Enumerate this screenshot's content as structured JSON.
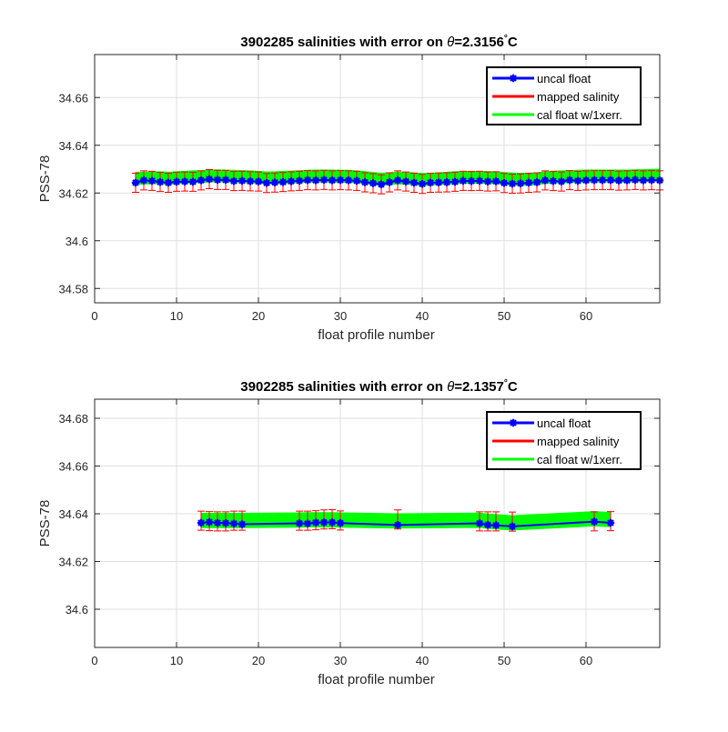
{
  "chart_data": [
    {
      "type": "line",
      "title_main": "3902285 salinities with error on ",
      "title_theta": "θ",
      "title_value": "=2.3156",
      "title_deg": "°",
      "title_unit": "C",
      "xlabel": "float profile number",
      "ylabel": "PSS-78",
      "xlim": [
        0,
        69
      ],
      "ylim": [
        34.574,
        34.678
      ],
      "xticks": [
        0,
        10,
        20,
        30,
        40,
        50,
        60
      ],
      "yticks": [
        34.58,
        34.6,
        34.62,
        34.64,
        34.66
      ],
      "ytick_labels": [
        "34.58",
        "34.6",
        "34.62",
        "34.64",
        "34.66"
      ],
      "grid": true,
      "legend_position": "top-right",
      "legend": [
        {
          "label": "uncal float",
          "color": "#0000ff",
          "marker": "star"
        },
        {
          "label": "mapped salinity",
          "color": "#ff0000"
        },
        {
          "label": "cal float w/1xerr.",
          "color": "#00ff00"
        }
      ],
      "x": [
        5,
        6,
        7,
        8,
        9,
        10,
        11,
        12,
        13,
        14,
        15,
        16,
        17,
        18,
        19,
        20,
        21,
        22,
        23,
        24,
        25,
        26,
        27,
        28,
        29,
        30,
        31,
        32,
        33,
        34,
        35,
        36,
        37,
        38,
        39,
        40,
        41,
        42,
        43,
        44,
        45,
        46,
        47,
        48,
        49,
        50,
        51,
        52,
        53,
        54,
        55,
        56,
        57,
        58,
        59,
        60,
        61,
        62,
        63,
        64,
        65,
        66,
        67,
        68,
        69
      ],
      "series": [
        {
          "name": "uncal float",
          "values": [
            34.6243,
            34.6253,
            34.6251,
            34.6246,
            34.6243,
            34.6247,
            34.6248,
            34.6247,
            34.6253,
            34.6258,
            34.6255,
            34.6255,
            34.625,
            34.6251,
            34.6249,
            34.6248,
            34.6242,
            34.6244,
            34.6246,
            34.6249,
            34.6251,
            34.6254,
            34.6253,
            34.6255,
            34.6253,
            34.6254,
            34.6253,
            34.6251,
            34.6245,
            34.6241,
            34.6236,
            34.6245,
            34.6253,
            34.6248,
            34.6243,
            34.6238,
            34.6243,
            34.6244,
            34.6245,
            34.6247,
            34.6251,
            34.625,
            34.6251,
            34.6248,
            34.6249,
            34.6242,
            34.6239,
            34.624,
            34.6243,
            34.6245,
            34.6253,
            34.625,
            34.6248,
            34.6254,
            34.6251,
            34.6253,
            34.6254,
            34.6254,
            34.6254,
            34.6252,
            34.6253,
            34.6255,
            34.6253,
            34.6254,
            34.6253
          ]
        },
        {
          "name": "mapped salinity",
          "values": [
            34.6243,
            34.6253,
            34.6251,
            34.6246,
            34.6243,
            34.6247,
            34.6248,
            34.6247,
            34.6253,
            34.6258,
            34.6255,
            34.6255,
            34.625,
            34.6251,
            34.6249,
            34.6248,
            34.6242,
            34.6244,
            34.6246,
            34.6249,
            34.6251,
            34.6254,
            34.6253,
            34.6255,
            34.6253,
            34.6254,
            34.6253,
            34.6251,
            34.6245,
            34.6241,
            34.6236,
            34.6245,
            34.6253,
            34.6248,
            34.6243,
            34.6238,
            34.6243,
            34.6244,
            34.6245,
            34.6247,
            34.6251,
            34.625,
            34.6251,
            34.6248,
            34.6249,
            34.6242,
            34.6239,
            34.624,
            34.6243,
            34.6245,
            34.6253,
            34.625,
            34.6248,
            34.6254,
            34.6251,
            34.6253,
            34.6254,
            34.6254,
            34.6254,
            34.6252,
            34.6253,
            34.6255,
            34.6253,
            34.6254,
            34.6253
          ],
          "error": 0.004
        },
        {
          "name": "cal float w/1xerr.",
          "values": [
            34.6262,
            34.6262,
            34.6264,
            34.6264,
            34.6262,
            34.6264,
            34.6266,
            34.6268,
            34.6269,
            34.6271,
            34.6272,
            34.6271,
            34.627,
            34.6269,
            34.6268,
            34.6266,
            34.6263,
            34.6264,
            34.6266,
            34.6267,
            34.6269,
            34.627,
            34.6271,
            34.6271,
            34.6271,
            34.627,
            34.627,
            34.6268,
            34.6265,
            34.6261,
            34.6258,
            34.626,
            34.6263,
            34.6262,
            34.626,
            34.6257,
            34.6258,
            34.626,
            34.6262,
            34.6264,
            34.6266,
            34.6266,
            34.6266,
            34.6265,
            34.6264,
            34.6261,
            34.6259,
            34.6258,
            34.6258,
            34.626,
            34.6264,
            34.6267,
            34.6268,
            34.6269,
            34.627,
            34.6271,
            34.6271,
            34.6271,
            34.6271,
            34.6271,
            34.6271,
            34.6272,
            34.6273,
            34.6274,
            34.6275
          ],
          "error": 0.0025
        }
      ]
    },
    {
      "type": "line",
      "title_main": "3902285 salinities with error on ",
      "title_theta": "θ",
      "title_value": "=2.1357",
      "title_deg": "°",
      "title_unit": "C",
      "xlabel": "float profile number",
      "ylabel": "PSS-78",
      "xlim": [
        0,
        69
      ],
      "ylim": [
        34.584,
        34.688
      ],
      "xticks": [
        0,
        10,
        20,
        30,
        40,
        50,
        60
      ],
      "yticks": [
        34.6,
        34.62,
        34.64,
        34.66,
        34.68
      ],
      "ytick_labels": [
        "34.6",
        "34.62",
        "34.64",
        "34.66",
        "34.68"
      ],
      "grid": true,
      "legend_position": "top-right",
      "legend": [
        {
          "label": "uncal float",
          "color": "#0000ff",
          "marker": "star"
        },
        {
          "label": "mapped salinity",
          "color": "#ff0000"
        },
        {
          "label": "cal float w/1xerr.",
          "color": "#00ff00"
        }
      ],
      "x": [
        13,
        14,
        15,
        16,
        17,
        18,
        25,
        26,
        27,
        28,
        29,
        30,
        37,
        47,
        48,
        49,
        51,
        61,
        63
      ],
      "series": [
        {
          "name": "uncal float",
          "values": [
            34.6362,
            34.6365,
            34.6362,
            34.6361,
            34.6359,
            34.6356,
            34.636,
            34.6359,
            34.6363,
            34.6364,
            34.6364,
            34.6361,
            34.6353,
            34.636,
            34.6353,
            34.6352,
            34.6347,
            34.6367,
            34.6362
          ]
        },
        {
          "name": "mapped salinity",
          "values": [
            34.6371,
            34.6369,
            34.6368,
            34.6368,
            34.6371,
            34.6371,
            34.6371,
            34.6371,
            34.6373,
            34.6376,
            34.6377,
            34.6372,
            34.6376,
            34.6368,
            34.6368,
            34.6368,
            34.6367,
            34.6368,
            34.6369
          ],
          "error": 0.004
        },
        {
          "name": "cal float w/1xerr.",
          "values": [
            34.6372,
            34.6372,
            34.6372,
            34.6372,
            34.6372,
            34.6372,
            34.6374,
            34.6375,
            34.6375,
            34.6375,
            34.6375,
            34.6374,
            34.637,
            34.6373,
            34.6369,
            34.6366,
            34.6362,
            34.6379,
            34.6376
          ],
          "error": 0.003
        }
      ]
    }
  ]
}
